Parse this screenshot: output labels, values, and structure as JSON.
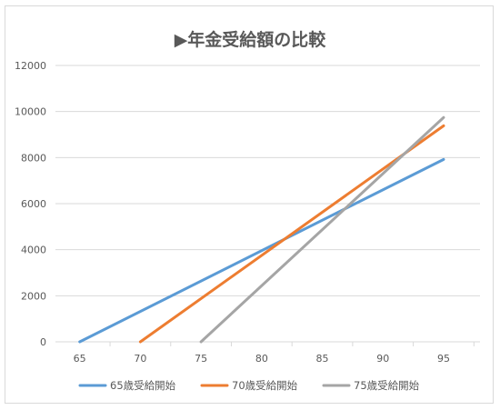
{
  "chart_data": {
    "type": "line",
    "title": "▶年金受給額の比較",
    "xlabel": "",
    "ylabel": "",
    "xlim": [
      63,
      98
    ],
    "ylim": [
      0,
      12000
    ],
    "x_ticks": [
      "65",
      "70",
      "75",
      "80",
      "85",
      "90",
      "95"
    ],
    "y_ticks": [
      "0",
      "2000",
      "4000",
      "6000",
      "8000",
      "10000",
      "12000"
    ],
    "grid": "horizontal",
    "legend_position": "bottom",
    "series": [
      {
        "name": "65歳受給開始",
        "color": "#5b9bd5",
        "x": [
          65,
          95
        ],
        "y": [
          0,
          7920
        ]
      },
      {
        "name": "70歳受給開始",
        "color": "#ed7d31",
        "x": [
          70,
          95
        ],
        "y": [
          0,
          9380
        ]
      },
      {
        "name": "75歳受給開始",
        "color": "#a5a5a5",
        "x": [
          75,
          95
        ],
        "y": [
          0,
          9740
        ]
      }
    ]
  }
}
